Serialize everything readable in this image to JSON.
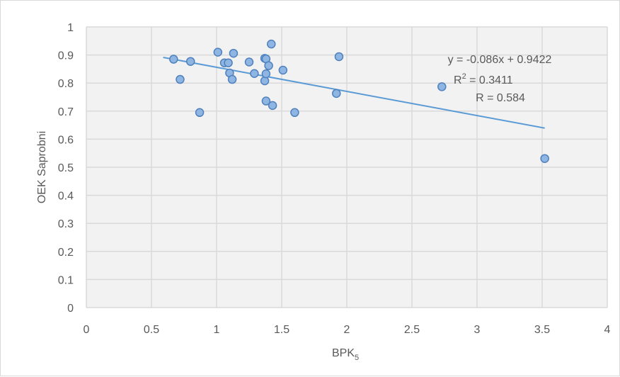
{
  "chart_data": {
    "type": "scatter",
    "title": "",
    "xlabel": "BPK",
    "xlabel_sub": "5",
    "ylabel": "OEK Saprobni",
    "xlim": [
      0,
      4
    ],
    "ylim": [
      0,
      1
    ],
    "x_ticks": [
      "0",
      "0.5",
      "1",
      "1.5",
      "2",
      "2.5",
      "3",
      "3.5",
      "4"
    ],
    "y_ticks": [
      "0",
      "0.1",
      "0.2",
      "0.3",
      "0.4",
      "0.5",
      "0.6",
      "0.7",
      "0.8",
      "0.9",
      "1"
    ],
    "grid": true,
    "points": [
      {
        "x": 0.67,
        "y": 0.885
      },
      {
        "x": 0.72,
        "y": 0.813
      },
      {
        "x": 0.8,
        "y": 0.877
      },
      {
        "x": 0.87,
        "y": 0.695
      },
      {
        "x": 1.01,
        "y": 0.91
      },
      {
        "x": 1.06,
        "y": 0.872
      },
      {
        "x": 1.09,
        "y": 0.872
      },
      {
        "x": 1.1,
        "y": 0.836
      },
      {
        "x": 1.12,
        "y": 0.813
      },
      {
        "x": 1.13,
        "y": 0.906
      },
      {
        "x": 1.25,
        "y": 0.875
      },
      {
        "x": 1.29,
        "y": 0.834
      },
      {
        "x": 1.37,
        "y": 0.808
      },
      {
        "x": 1.37,
        "y": 0.888
      },
      {
        "x": 1.38,
        "y": 0.886
      },
      {
        "x": 1.38,
        "y": 0.833
      },
      {
        "x": 1.38,
        "y": 0.736
      },
      {
        "x": 1.4,
        "y": 0.862
      },
      {
        "x": 1.42,
        "y": 0.939
      },
      {
        "x": 1.43,
        "y": 0.72
      },
      {
        "x": 1.51,
        "y": 0.846
      },
      {
        "x": 1.6,
        "y": 0.695
      },
      {
        "x": 1.92,
        "y": 0.763
      },
      {
        "x": 1.94,
        "y": 0.894
      },
      {
        "x": 2.73,
        "y": 0.787
      },
      {
        "x": 3.52,
        "y": 0.531
      }
    ],
    "trendline": {
      "slope": -0.086,
      "intercept": 0.9422,
      "x_range": [
        0.59,
        3.52
      ]
    },
    "annotations": {
      "equation": "y = -0.086x + 0.9422",
      "r2_prefix": "R",
      "r2_sup": "2",
      "r2_value": " = 0.3411",
      "r": "R = 0.584"
    },
    "colors": {
      "marker_fill": "#8fb5e3",
      "marker_stroke": "#4f81bd",
      "trendline": "#5b9bd5",
      "grid": "#d9d9d9",
      "plot_bg": "#f2f2f2"
    }
  }
}
